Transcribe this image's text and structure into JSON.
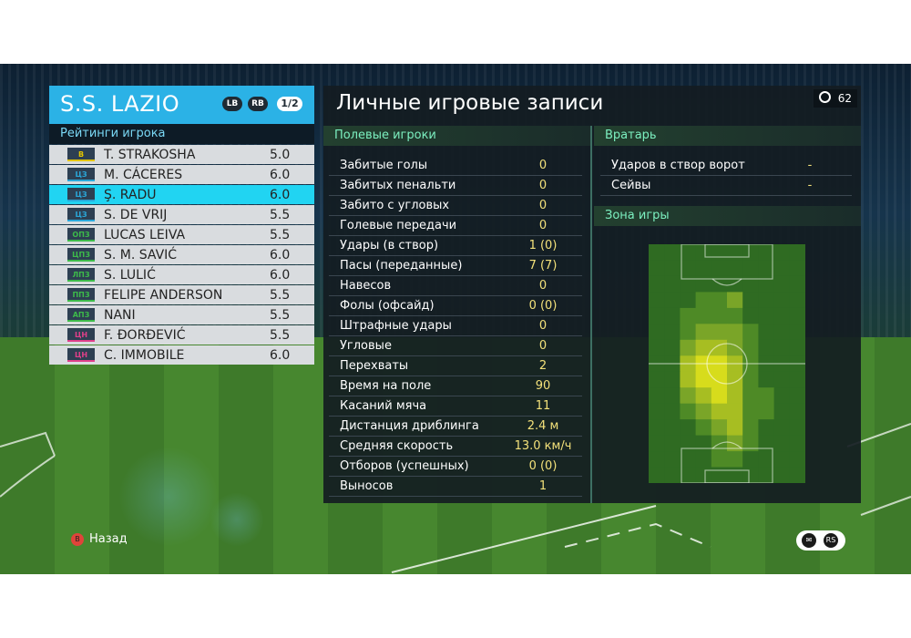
{
  "team": {
    "name": "S.S. LAZIO",
    "btn_lb": "LB",
    "btn_rb": "RB",
    "page": "1/2"
  },
  "ratings_title": "Рейтинги игрока",
  "players": [
    {
      "pos": "В",
      "pos_color": "#e3c400",
      "name": "T. STRAKOSHA",
      "rating": "5.0",
      "selected": false
    },
    {
      "pos": "ЦЗ",
      "pos_color": "#2aa7d9",
      "name": "M. CÁCERES",
      "rating": "6.0",
      "selected": false
    },
    {
      "pos": "ЦЗ",
      "pos_color": "#2aa7d9",
      "name": "Ş. RADU",
      "rating": "6.0",
      "selected": true
    },
    {
      "pos": "ЦЗ",
      "pos_color": "#2aa7d9",
      "name": "S. DE VRIJ",
      "rating": "5.5",
      "selected": false
    },
    {
      "pos": "ОПЗ",
      "pos_color": "#3dbb4a",
      "name": "LUCAS LEIVA",
      "rating": "5.5",
      "selected": false
    },
    {
      "pos": "ЦПЗ",
      "pos_color": "#3dbb4a",
      "name": "S. M. SAVIĆ",
      "rating": "6.0",
      "selected": false
    },
    {
      "pos": "ЛПЗ",
      "pos_color": "#3dbb4a",
      "name": "S. LULIĆ",
      "rating": "6.0",
      "selected": false
    },
    {
      "pos": "ППЗ",
      "pos_color": "#3dbb4a",
      "name": "FELIPE ANDERSON",
      "rating": "5.5",
      "selected": false
    },
    {
      "pos": "АПЗ",
      "pos_color": "#3dbb4a",
      "name": "NANI",
      "rating": "5.5",
      "selected": false
    },
    {
      "pos": "ЦН",
      "pos_color": "#e0408a",
      "name": "F. ĐORĐEVIĆ",
      "rating": "5.5",
      "selected": false
    },
    {
      "pos": "ЦН",
      "pos_color": "#e0408a",
      "name": "C. IMMOBILE",
      "rating": "6.0",
      "selected": false
    }
  ],
  "main": {
    "title": "Личные игровые записи",
    "timer": "62"
  },
  "field_section": {
    "title": "Полевые игроки",
    "stats": [
      {
        "label": "Забитые голы",
        "value": "0"
      },
      {
        "label": "Забитых пенальти",
        "value": "0"
      },
      {
        "label": "Забито с угловых",
        "value": "0"
      },
      {
        "label": "Голевые передачи",
        "value": "0"
      },
      {
        "label": "Удары (в створ)",
        "value": "1 (0)"
      },
      {
        "label": "Пасы (переданные)",
        "value": "7 (7)"
      },
      {
        "label": "Навесов",
        "value": "0"
      },
      {
        "label": "Фолы (офсайд)",
        "value": "0 (0)"
      },
      {
        "label": "Штрафные удары",
        "value": "0"
      },
      {
        "label": "Угловые",
        "value": "0"
      },
      {
        "label": "Перехваты",
        "value": "2"
      },
      {
        "label": "Время на поле",
        "value": "90"
      },
      {
        "label": "Касаний мяча",
        "value": "11"
      },
      {
        "label": "Дистанция дриблинга",
        "value": "2.4 м"
      },
      {
        "label": "Средняя скорость",
        "value": "13.0 км/ч"
      },
      {
        "label": "Отборов (успешных)",
        "value": "0 (0)"
      },
      {
        "label": "Выносов",
        "value": "1"
      }
    ]
  },
  "gk_section": {
    "title": "Вратарь",
    "stats": [
      {
        "label": "Ударов в створ ворот",
        "value": "-"
      },
      {
        "label": "Сейвы",
        "value": "-"
      }
    ]
  },
  "zone_section": {
    "title": "Зона игры"
  },
  "heatmap": {
    "cols": 10,
    "rows": 15,
    "intensity": [
      [
        0,
        0,
        0,
        0,
        0,
        0,
        0,
        0,
        0,
        0
      ],
      [
        0,
        0,
        0,
        0,
        0,
        0,
        0,
        0,
        0,
        0
      ],
      [
        0,
        0,
        0,
        0,
        0,
        0,
        0,
        0,
        0,
        0
      ],
      [
        0,
        0,
        0,
        1,
        1,
        2,
        0,
        0,
        0,
        0
      ],
      [
        0,
        0,
        1,
        1,
        1,
        1,
        0,
        0,
        0,
        0
      ],
      [
        0,
        0,
        1,
        2,
        2,
        2,
        1,
        0,
        0,
        0
      ],
      [
        0,
        0,
        2,
        3,
        3,
        2,
        1,
        0,
        0,
        0
      ],
      [
        0,
        0,
        3,
        4,
        4,
        3,
        1,
        0,
        0,
        0
      ],
      [
        0,
        0,
        3,
        4,
        4,
        3,
        1,
        0,
        0,
        0
      ],
      [
        0,
        0,
        2,
        3,
        4,
        3,
        1,
        1,
        0,
        0
      ],
      [
        0,
        0,
        1,
        2,
        3,
        3,
        1,
        1,
        0,
        0
      ],
      [
        0,
        0,
        0,
        1,
        2,
        3,
        1,
        0,
        0,
        0
      ],
      [
        0,
        0,
        0,
        0,
        1,
        2,
        1,
        0,
        0,
        0
      ],
      [
        0,
        0,
        0,
        0,
        1,
        1,
        0,
        0,
        0,
        0
      ],
      [
        0,
        0,
        0,
        0,
        0,
        0,
        0,
        0,
        0,
        0
      ]
    ],
    "colors": [
      "#2f6b22",
      "#4e8a26",
      "#7aa528",
      "#a7be22",
      "#d7dc1c"
    ]
  },
  "footer": {
    "back_button": "B",
    "back_label": "Назад",
    "icon_right": "RS"
  }
}
